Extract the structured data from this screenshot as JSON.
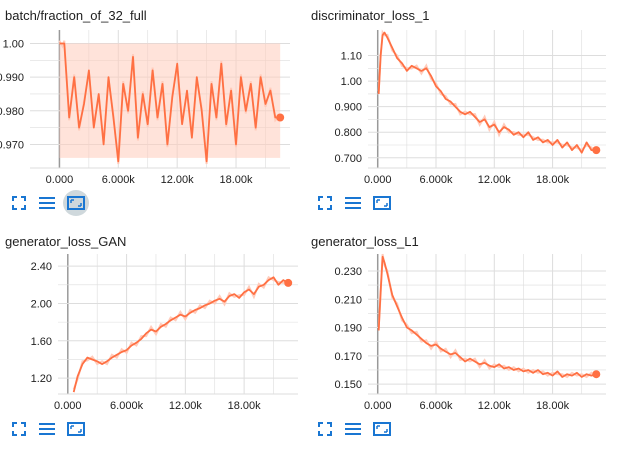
{
  "cards": [
    {
      "title": "batch/fraction_of_32_full",
      "buttons": [
        "fullscreen-icon",
        "list-icon",
        "fit-domain-icon"
      ],
      "fit_domain_active": true
    },
    {
      "title": "discriminator_loss_1",
      "buttons": [
        "fullscreen-icon",
        "list-icon",
        "fit-domain-icon"
      ],
      "fit_domain_active": false
    },
    {
      "title": "generator_loss_GAN",
      "buttons": [
        "fullscreen-icon",
        "list-icon",
        "fit-domain-icon"
      ],
      "fit_domain_active": false
    },
    {
      "title": "generator_loss_L1",
      "buttons": [
        "fullscreen-icon",
        "list-icon",
        "fit-domain-icon"
      ],
      "fit_domain_active": false
    }
  ],
  "colors": {
    "series": "#ff7043",
    "series_band": "#ffccbc",
    "grid": "#dddddd",
    "axis_zero": "#999999",
    "icon": "#1976d2",
    "active_button_bg": "#cfd8dc"
  },
  "chart_data": [
    {
      "type": "line",
      "title": "batch/fraction_of_32_full",
      "xlim": [
        -3000,
        23500
      ],
      "ylim": [
        0.963,
        1.004
      ],
      "xticks": [
        0,
        6000,
        12000,
        18000
      ],
      "xtick_labels": [
        "0.000",
        "6.000k",
        "12.00k",
        "18.00k"
      ],
      "yticks": [
        1.0,
        0.99,
        0.98,
        0.97
      ],
      "ytick_labels": [
        "1.00",
        "0.990",
        "0.980",
        "0.970"
      ],
      "grid": true,
      "band": [
        0.966,
        1.0
      ],
      "series": [
        {
          "x": [
            0,
            300,
            500,
            1000,
            1500,
            2000,
            2500,
            3000,
            3500,
            4000,
            4500,
            5000,
            5500,
            6000,
            6500,
            7000,
            7500,
            8000,
            8500,
            9000,
            9500,
            10000,
            10500,
            11000,
            11500,
            12000,
            12500,
            13000,
            13500,
            14000,
            14500,
            15000,
            15500,
            16000,
            16500,
            17000,
            17500,
            18000,
            18500,
            19000,
            19500,
            20000,
            20500,
            21000,
            21500,
            22000,
            22500
          ],
          "y": [
            1.0,
            1.0,
            1.0,
            0.978,
            0.99,
            0.975,
            0.982,
            0.992,
            0.975,
            0.985,
            0.97,
            0.99,
            0.978,
            0.965,
            0.988,
            0.98,
            0.996,
            0.972,
            0.985,
            0.976,
            0.992,
            0.978,
            0.988,
            0.97,
            0.984,
            0.994,
            0.976,
            0.986,
            0.972,
            0.99,
            0.98,
            0.965,
            0.988,
            0.978,
            0.994,
            0.976,
            0.986,
            0.97,
            0.99,
            0.98,
            0.988,
            0.975,
            0.99,
            0.982,
            0.986,
            0.978,
            0.978
          ]
        }
      ]
    },
    {
      "type": "line",
      "title": "discriminator_loss_1",
      "xlim": [
        -1000,
        23500
      ],
      "ylim": [
        0.66,
        1.2
      ],
      "xticks": [
        0,
        6000,
        12000,
        18000
      ],
      "xtick_labels": [
        "0.000",
        "6.000k",
        "12.00k",
        "18.00k"
      ],
      "yticks": [
        1.1,
        1.0,
        0.9,
        0.8,
        0.7
      ],
      "ytick_labels": [
        "1.10",
        "1.00",
        "0.900",
        "0.800",
        "0.700"
      ],
      "grid": true,
      "series": [
        {
          "x": [
            100,
            300,
            500,
            700,
            1000,
            1500,
            2000,
            2500,
            3000,
            3500,
            4000,
            4500,
            5000,
            5500,
            6000,
            6500,
            7000,
            7500,
            8000,
            8500,
            9000,
            9500,
            10000,
            10500,
            11000,
            11500,
            12000,
            12500,
            13000,
            13500,
            14000,
            14500,
            15000,
            15500,
            16000,
            16500,
            17000,
            17500,
            18000,
            18500,
            19000,
            19500,
            20000,
            20500,
            21000,
            21500,
            22000,
            22500
          ],
          "y": [
            0.95,
            1.1,
            1.18,
            1.19,
            1.17,
            1.13,
            1.09,
            1.07,
            1.04,
            1.06,
            1.05,
            1.04,
            1.05,
            1.02,
            0.98,
            0.96,
            0.93,
            0.92,
            0.9,
            0.88,
            0.87,
            0.88,
            0.86,
            0.84,
            0.85,
            0.82,
            0.83,
            0.8,
            0.82,
            0.81,
            0.79,
            0.8,
            0.78,
            0.8,
            0.77,
            0.78,
            0.76,
            0.77,
            0.75,
            0.77,
            0.74,
            0.76,
            0.73,
            0.75,
            0.72,
            0.76,
            0.73,
            0.73
          ]
        }
      ]
    },
    {
      "type": "line",
      "title": "generator_loss_GAN",
      "xlim": [
        -1000,
        23500
      ],
      "ylim": [
        1.03,
        2.53
      ],
      "xticks": [
        0,
        6000,
        12000,
        18000
      ],
      "xtick_labels": [
        "0.000",
        "6.000k",
        "12.00k",
        "18.00k"
      ],
      "yticks": [
        2.4,
        2.0,
        1.6,
        1.2
      ],
      "ytick_labels": [
        "2.40",
        "2.00",
        "1.60",
        "1.20"
      ],
      "grid": true,
      "series": [
        {
          "x": [
            600,
            1000,
            1500,
            2000,
            2500,
            3000,
            3500,
            4000,
            4500,
            5000,
            5500,
            6000,
            6500,
            7000,
            7500,
            8000,
            8500,
            9000,
            9500,
            10000,
            10500,
            11000,
            11500,
            12000,
            12500,
            13000,
            13500,
            14000,
            14500,
            15000,
            15500,
            16000,
            16500,
            17000,
            17500,
            18000,
            18500,
            19000,
            19500,
            20000,
            20500,
            21000,
            21500,
            22000,
            22500
          ],
          "y": [
            1.05,
            1.22,
            1.35,
            1.42,
            1.4,
            1.38,
            1.35,
            1.38,
            1.42,
            1.45,
            1.48,
            1.5,
            1.55,
            1.58,
            1.62,
            1.68,
            1.72,
            1.7,
            1.75,
            1.78,
            1.82,
            1.85,
            1.88,
            1.86,
            1.9,
            1.93,
            1.95,
            1.98,
            2.0,
            2.03,
            2.05,
            2.02,
            2.08,
            2.1,
            2.06,
            2.12,
            2.15,
            2.1,
            2.18,
            2.2,
            2.25,
            2.28,
            2.2,
            2.25,
            2.22
          ]
        }
      ]
    },
    {
      "type": "line",
      "title": "generator_loss_L1",
      "xlim": [
        -1000,
        23500
      ],
      "ylim": [
        0.143,
        0.242
      ],
      "xticks": [
        0,
        6000,
        12000,
        18000
      ],
      "xtick_labels": [
        "0.000",
        "6.000k",
        "12.00k",
        "18.00k"
      ],
      "yticks": [
        0.23,
        0.21,
        0.19,
        0.17,
        0.15
      ],
      "ytick_labels": [
        "0.230",
        "0.210",
        "0.190",
        "0.170",
        "0.150"
      ],
      "grid": true,
      "series": [
        {
          "x": [
            100,
            300,
            500,
            700,
            1000,
            1500,
            2000,
            2500,
            3000,
            3500,
            4000,
            4500,
            5000,
            5500,
            6000,
            6500,
            7000,
            7500,
            8000,
            8500,
            9000,
            9500,
            10000,
            10500,
            11000,
            11500,
            12000,
            12500,
            13000,
            13500,
            14000,
            14500,
            15000,
            15500,
            16000,
            16500,
            17000,
            17500,
            18000,
            18500,
            19000,
            19500,
            20000,
            20500,
            21000,
            21500,
            22000,
            22500
          ],
          "y": [
            0.188,
            0.215,
            0.24,
            0.236,
            0.228,
            0.213,
            0.205,
            0.197,
            0.19,
            0.188,
            0.185,
            0.182,
            0.179,
            0.177,
            0.178,
            0.175,
            0.173,
            0.171,
            0.172,
            0.169,
            0.166,
            0.168,
            0.166,
            0.164,
            0.165,
            0.163,
            0.162,
            0.164,
            0.161,
            0.162,
            0.16,
            0.161,
            0.159,
            0.16,
            0.158,
            0.16,
            0.157,
            0.158,
            0.156,
            0.159,
            0.155,
            0.157,
            0.156,
            0.158,
            0.155,
            0.157,
            0.156,
            0.157
          ]
        }
      ]
    }
  ]
}
